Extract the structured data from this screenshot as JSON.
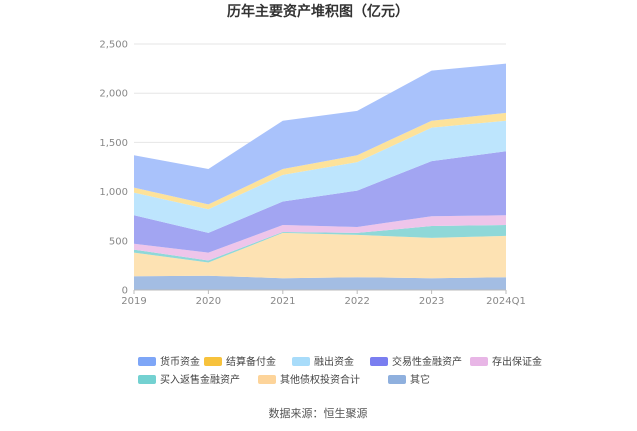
{
  "chart_data": {
    "type": "area",
    "stacked": true,
    "title": "历年主要资产堆积图（亿元）",
    "x": [
      "2019",
      "2020",
      "2021",
      "2022",
      "2023",
      "2024Q1"
    ],
    "ylim": [
      0,
      2500
    ],
    "yticks": [
      "0",
      "500",
      "1,000",
      "1,500",
      "2,000",
      "2,500"
    ],
    "ytick_values": [
      0,
      500,
      1000,
      1500,
      2000,
      2500
    ],
    "grid": true,
    "legend_position": "bottom",
    "series": [
      {
        "name": "其它",
        "color": "#a3bde3",
        "values": [
          140,
          145,
          120,
          130,
          120,
          130
        ]
      },
      {
        "name": "其他债权投资合计",
        "color": "#fde2b3",
        "values": [
          240,
          135,
          460,
          430,
          410,
          420
        ]
      },
      {
        "name": "买入返售金融资产",
        "color": "#8fd8d8",
        "values": [
          30,
          20,
          10,
          20,
          120,
          110
        ]
      },
      {
        "name": "存出保证金",
        "color": "#eec5ea",
        "values": [
          60,
          80,
          70,
          60,
          100,
          100
        ]
      },
      {
        "name": "交易性金融资产",
        "color": "#a2a5f2",
        "values": [
          290,
          200,
          240,
          370,
          560,
          650
        ]
      },
      {
        "name": "融出资金",
        "color": "#bde5fd",
        "values": [
          230,
          240,
          270,
          290,
          340,
          310
        ]
      },
      {
        "name": "结算备付金",
        "color": "#fde29a",
        "values": [
          50,
          50,
          60,
          70,
          70,
          80
        ]
      },
      {
        "name": "货币资金",
        "color": "#a9c2fb",
        "values": [
          330,
          360,
          490,
          450,
          510,
          500
        ]
      }
    ]
  },
  "legend": {
    "items": [
      {
        "name": "货币资金",
        "color": "#7ea6f7"
      },
      {
        "name": "结算备付金",
        "color": "#f7c23c"
      },
      {
        "name": "融出资金",
        "color": "#a8dcfa"
      },
      {
        "name": "交易性金融资产",
        "color": "#7a7ef0"
      },
      {
        "name": "存出保证金",
        "color": "#e8b6e6"
      },
      {
        "name": "买入返售金融资产",
        "color": "#73d1d1"
      },
      {
        "name": "其他债权投资合计",
        "color": "#fdd49a"
      },
      {
        "name": "其它",
        "color": "#8fb0de"
      }
    ]
  },
  "source": "数据来源：恒生聚源"
}
